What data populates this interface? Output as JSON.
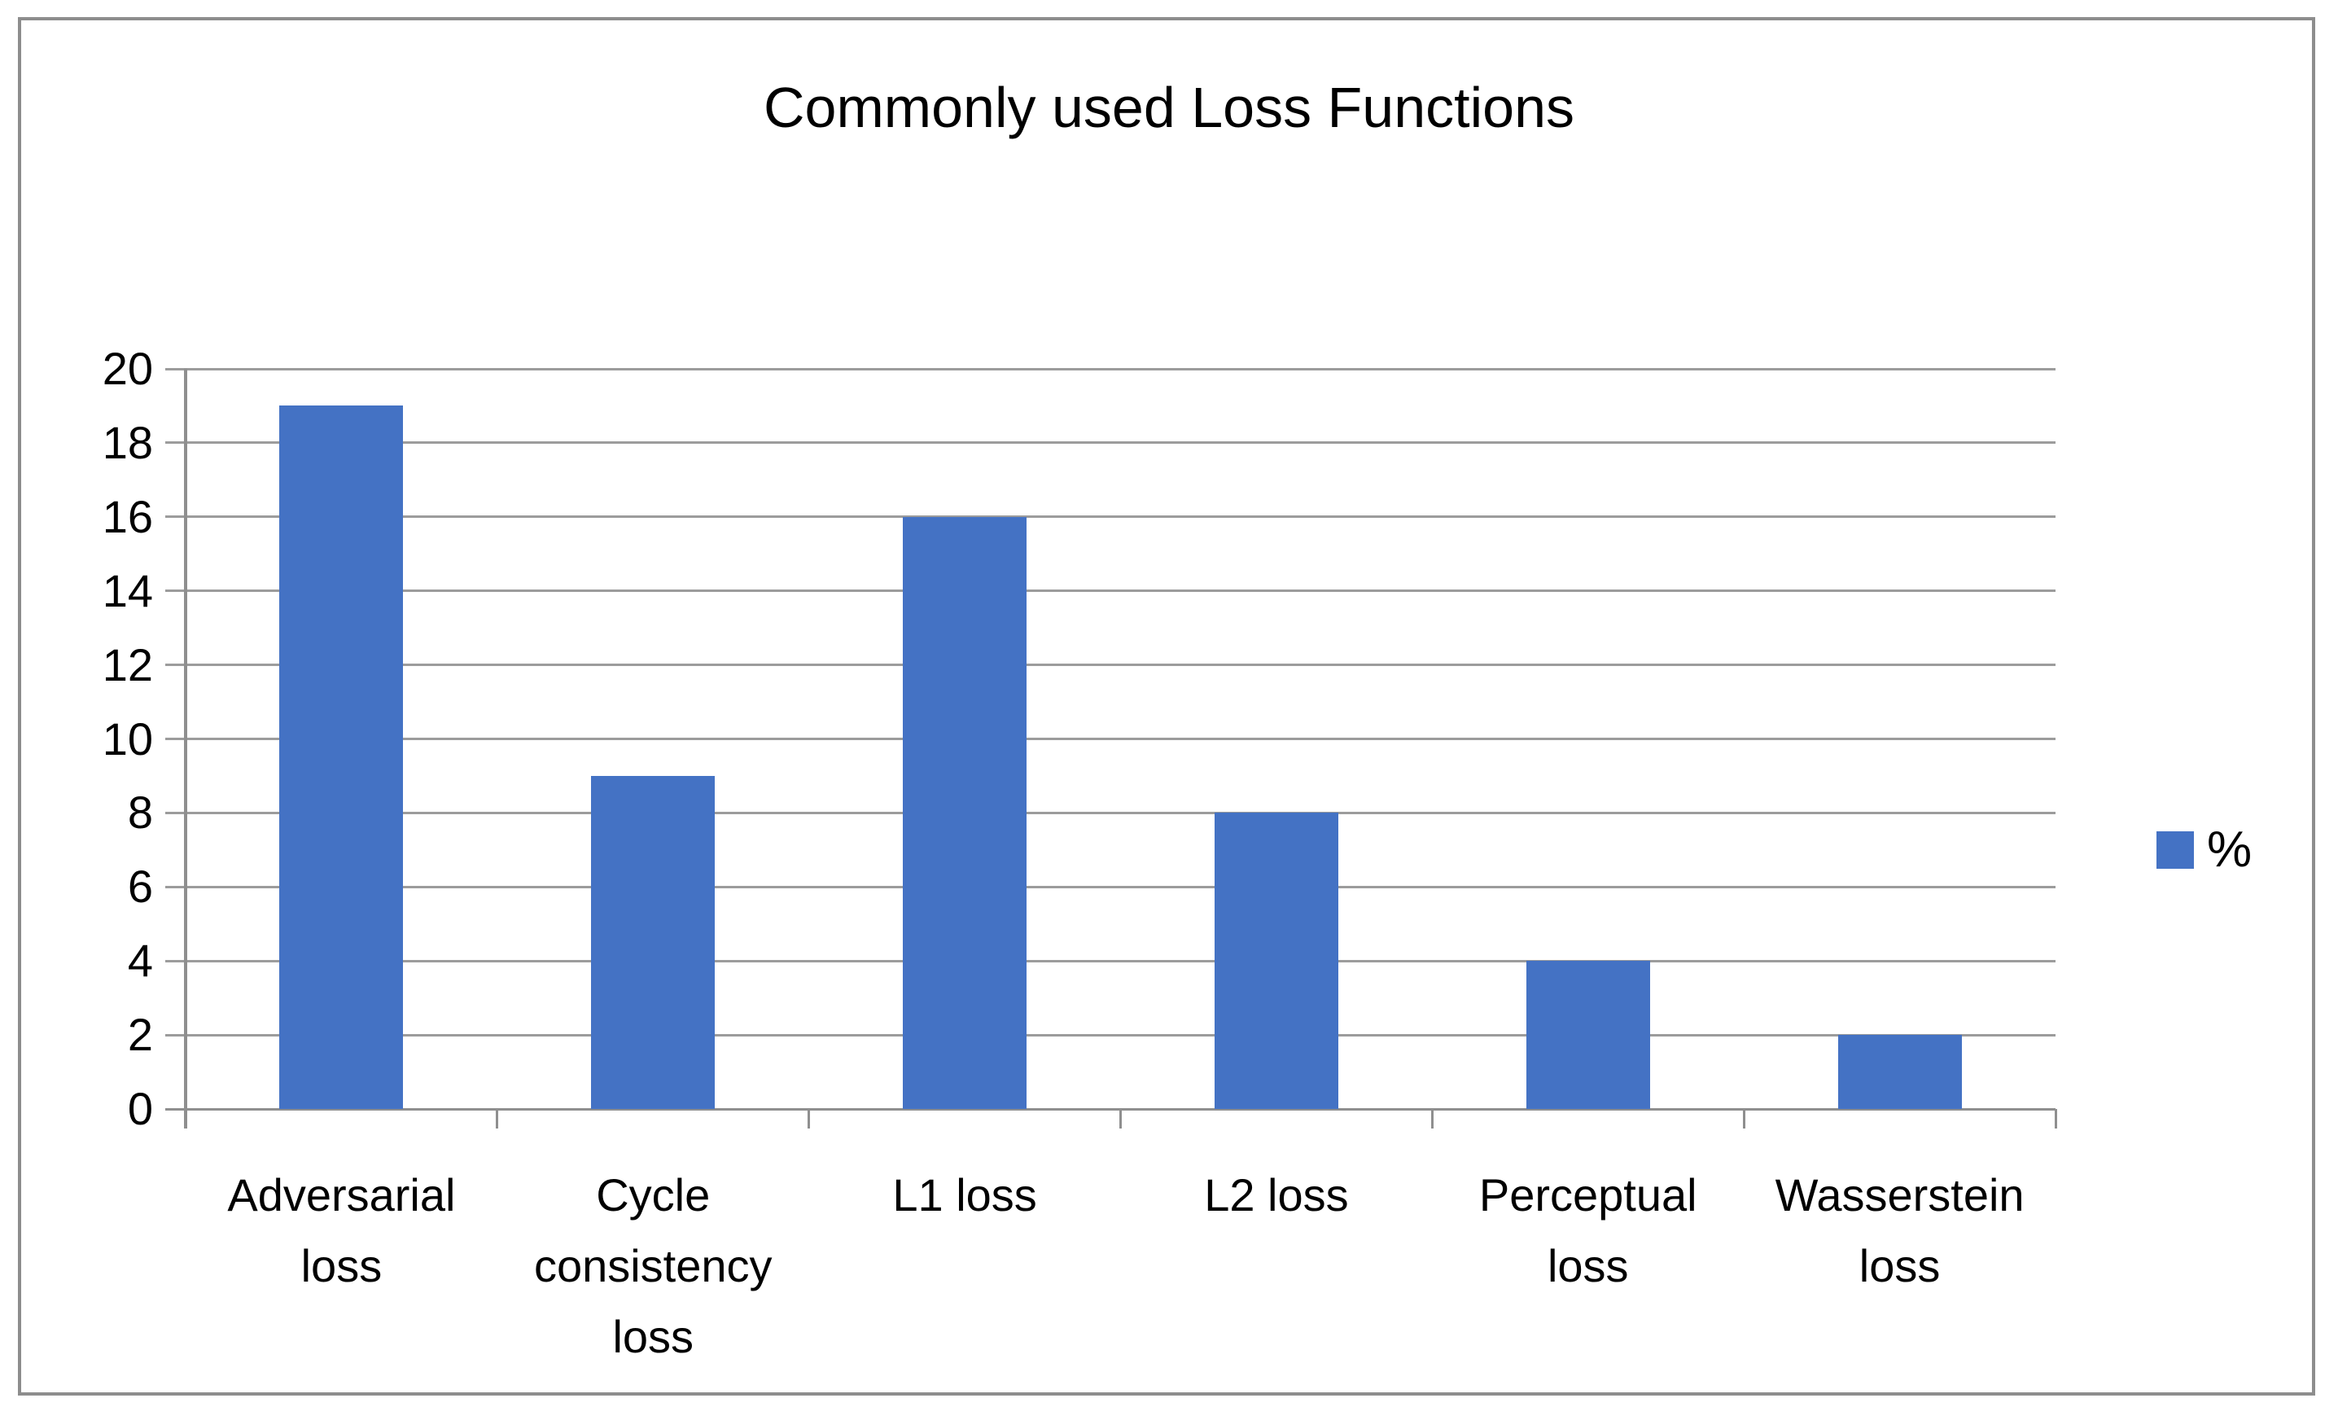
{
  "chart_data": {
    "type": "bar",
    "title": "Commonly used Loss Functions",
    "categories": [
      "Adversarial loss",
      "Cycle consistency loss",
      "L1 loss",
      "L2 loss",
      "Perceptual loss",
      "Wasserstein loss"
    ],
    "series": [
      {
        "name": "%",
        "values": [
          19,
          9,
          16,
          8,
          4,
          2
        ]
      }
    ],
    "xlabel": "",
    "ylabel": "",
    "ylim": [
      0,
      20
    ],
    "yticks": [
      0,
      2,
      4,
      6,
      8,
      10,
      12,
      14,
      16,
      18,
      20
    ],
    "grid": true,
    "legend_position": "right",
    "colors": {
      "bar": "#4472C4",
      "gridline": "#9c9c9c",
      "axis": "#8f8f8f",
      "frame_border": "#8d8d8d",
      "text": "#000000",
      "background": "#ffffff"
    }
  }
}
